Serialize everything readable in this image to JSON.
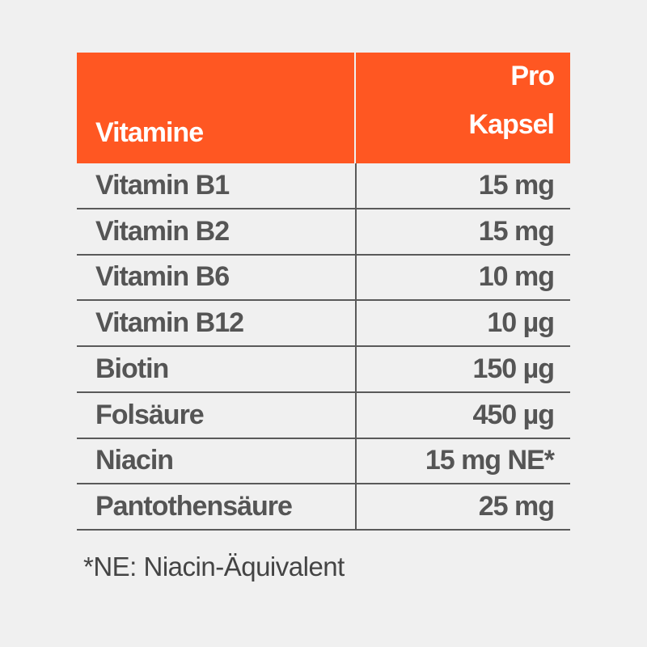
{
  "table": {
    "header": {
      "col1": "Vitamine",
      "col2_line1": "Pro",
      "col2_line2": "Kapsel"
    },
    "rows": [
      {
        "name": "Vitamin B1",
        "amount": "15 mg"
      },
      {
        "name": "Vitamin B2",
        "amount": "15 mg"
      },
      {
        "name": "Vitamin B6",
        "amount": "10 mg"
      },
      {
        "name": "Vitamin B12",
        "amount": "10 µg"
      },
      {
        "name": "Biotin",
        "amount": "150 µg"
      },
      {
        "name": "Folsäure",
        "amount": "450 µg"
      },
      {
        "name": "Niacin",
        "amount": "15 mg NE*"
      },
      {
        "name": "Pantothensäure",
        "amount": "25 mg"
      }
    ]
  },
  "footnote": "*NE: Niacin-Äquivalent",
  "colors": {
    "header_bg": "#ff5722",
    "text": "#555555"
  }
}
